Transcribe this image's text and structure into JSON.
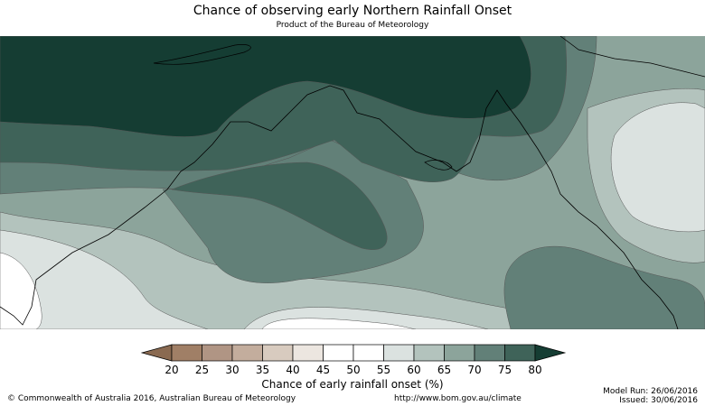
{
  "title": "Chance of observing early Northern Rainfall Onset",
  "subtitle": "Product of the Bureau of Meteorology",
  "colorbar": {
    "label": "Chance of early rainfall onset (%)",
    "ticks": [
      "20",
      "25",
      "30",
      "35",
      "40",
      "45",
      "50",
      "55",
      "60",
      "65",
      "70",
      "75",
      "80"
    ],
    "colors": [
      "#a07f66",
      "#b09584",
      "#c3ad9d",
      "#d8cbbf",
      "#ece6e0",
      "#ffffff",
      "#ffffff",
      "#dbe2e0",
      "#b3c3bd",
      "#8ca49b",
      "#628078",
      "#3f6359"
    ],
    "low_extend_color": "#8a6a51",
    "high_extend_color": "#153d33"
  },
  "map": {
    "colors": {
      "ge80": "#153d33",
      "p75_80": "#3f6359",
      "p70_75": "#628078",
      "p65_70": "#8ca49b",
      "p60_65": "#b3c3bd",
      "p55_60": "#dbe2e0",
      "p50_55": "#ffffff",
      "coast": "#000000"
    }
  },
  "footer": {
    "copyright": "© Commonwealth of Australia 2016, Australian Bureau of Meteorology",
    "url": "http://www.bom.gov.au/climate",
    "model_run": "Model Run: 26/06/2016",
    "issued": "Issued: 30/06/2016"
  }
}
